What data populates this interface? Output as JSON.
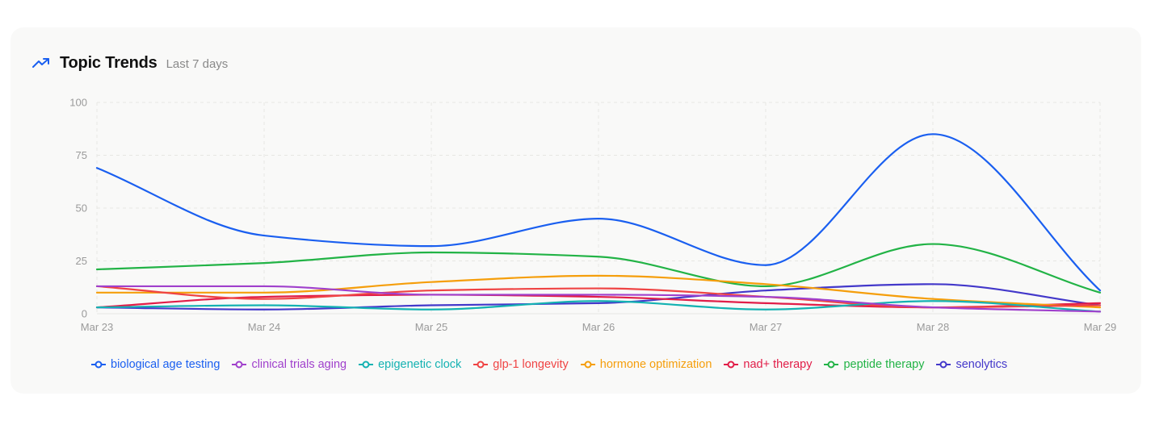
{
  "header": {
    "title": "Topic Trends",
    "subtitle": "Last 7 days"
  },
  "colors": {
    "accent": "#1a5ff0",
    "grid": "#e6e6e3",
    "tick": "#9a9a9a",
    "card_bg": "#f9f9f8"
  },
  "chart_data": {
    "type": "line",
    "title": "Topic Trends",
    "subtitle": "Last 7 days",
    "xlabel": "",
    "ylabel": "",
    "ylim": [
      0,
      100
    ],
    "yticks": [
      0,
      25,
      50,
      75,
      100
    ],
    "grid": true,
    "legend_position": "bottom",
    "categories": [
      "Mar 23",
      "Mar 24",
      "Mar 25",
      "Mar 26",
      "Mar 27",
      "Mar 28",
      "Mar 29"
    ],
    "series": [
      {
        "name": "biological age testing",
        "color": "#1a5ff0",
        "values": [
          69,
          37,
          32,
          45,
          23,
          85,
          11
        ]
      },
      {
        "name": "clinical trials aging",
        "color": "#a040cc",
        "values": [
          13,
          13,
          9,
          9,
          8,
          3,
          1
        ]
      },
      {
        "name": "epigenetic clock",
        "color": "#14b2b2",
        "values": [
          3,
          4,
          2,
          6,
          2,
          6,
          1
        ]
      },
      {
        "name": "glp-1 longevity",
        "color": "#ef4444",
        "values": [
          13,
          7,
          11,
          12,
          8,
          3,
          4
        ]
      },
      {
        "name": "hormone optimization",
        "color": "#f59e0b",
        "values": [
          10,
          10,
          15,
          18,
          14,
          7,
          3
        ]
      },
      {
        "name": "nad+ therapy",
        "color": "#e11d48",
        "values": [
          3,
          8,
          9,
          8,
          5,
          3,
          5
        ]
      },
      {
        "name": "peptide therapy",
        "color": "#22b346",
        "values": [
          21,
          24,
          29,
          27,
          13,
          33,
          10
        ]
      },
      {
        "name": "senolytics",
        "color": "#4338ca",
        "values": [
          3,
          2,
          4,
          5,
          11,
          14,
          4
        ]
      }
    ]
  }
}
